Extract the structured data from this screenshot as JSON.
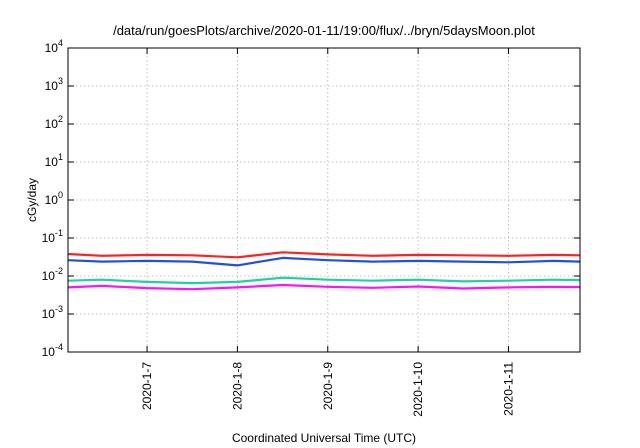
{
  "chart_data": {
    "type": "line",
    "title": "/data/run/goesPlots/archive/2020-01-11/19:00/flux/../bryn/5daysMoon.plot",
    "xlabel": "Coordinated Universal Time (UTC)",
    "ylabel": "cGy/day",
    "yscale": "log",
    "ylim": [
      0.0001,
      10000
    ],
    "xlim": [
      "2020-01-06T03:00",
      "2020-01-11T19:00"
    ],
    "y_ticks": [
      {
        "value": 0.0001,
        "base": "10",
        "exp": "-4"
      },
      {
        "value": 0.001,
        "base": "10",
        "exp": "-3"
      },
      {
        "value": 0.01,
        "base": "10",
        "exp": "-2"
      },
      {
        "value": 0.1,
        "base": "10",
        "exp": "-1"
      },
      {
        "value": 1,
        "base": "10",
        "exp": "0"
      },
      {
        "value": 10,
        "base": "10",
        "exp": "1"
      },
      {
        "value": 100,
        "base": "10",
        "exp": "2"
      },
      {
        "value": 1000,
        "base": "10",
        "exp": "3"
      },
      {
        "value": 10000,
        "base": "10",
        "exp": "4"
      }
    ],
    "x_ticks": [
      {
        "value": "2020-01-07T00:00",
        "label": "2020-1-7"
      },
      {
        "value": "2020-01-08T00:00",
        "label": "2020-1-8"
      },
      {
        "value": "2020-01-09T00:00",
        "label": "2020-1-9"
      },
      {
        "value": "2020-01-10T00:00",
        "label": "2020-1-10"
      },
      {
        "value": "2020-01-11T00:00",
        "label": "2020-1-11"
      }
    ],
    "grid": true,
    "series": [
      {
        "color": "#ff2020",
        "x": [
          "2020-01-06T03:00",
          "2020-01-06T12:00",
          "2020-01-07T00:00",
          "2020-01-07T12:00",
          "2020-01-08T00:00",
          "2020-01-08T12:00",
          "2020-01-09T00:00",
          "2020-01-09T12:00",
          "2020-01-10T00:00",
          "2020-01-10T12:00",
          "2020-01-11T00:00",
          "2020-01-11T12:00",
          "2020-01-11T19:00"
        ],
        "values": [
          0.038,
          0.034,
          0.036,
          0.035,
          0.031,
          0.042,
          0.037,
          0.034,
          0.036,
          0.035,
          0.034,
          0.036,
          0.035
        ]
      },
      {
        "color": "#2050e0",
        "x": [
          "2020-01-06T03:00",
          "2020-01-06T12:00",
          "2020-01-07T00:00",
          "2020-01-07T12:00",
          "2020-01-08T00:00",
          "2020-01-08T12:00",
          "2020-01-09T00:00",
          "2020-01-09T12:00",
          "2020-01-10T00:00",
          "2020-01-10T12:00",
          "2020-01-11T00:00",
          "2020-01-11T12:00",
          "2020-01-11T19:00"
        ],
        "values": [
          0.026,
          0.024,
          0.025,
          0.024,
          0.019,
          0.03,
          0.026,
          0.024,
          0.025,
          0.024,
          0.023,
          0.025,
          0.024
        ]
      },
      {
        "color": "#20d0a0",
        "x": [
          "2020-01-06T03:00",
          "2020-01-06T12:00",
          "2020-01-07T00:00",
          "2020-01-07T12:00",
          "2020-01-08T00:00",
          "2020-01-08T12:00",
          "2020-01-09T00:00",
          "2020-01-09T12:00",
          "2020-01-10T00:00",
          "2020-01-10T12:00",
          "2020-01-11T00:00",
          "2020-01-11T12:00",
          "2020-01-11T19:00"
        ],
        "values": [
          0.0075,
          0.008,
          0.007,
          0.0065,
          0.007,
          0.009,
          0.008,
          0.0075,
          0.008,
          0.0072,
          0.0075,
          0.008,
          0.0078
        ]
      },
      {
        "color": "#ff10ff",
        "x": [
          "2020-01-06T03:00",
          "2020-01-06T12:00",
          "2020-01-07T00:00",
          "2020-01-07T12:00",
          "2020-01-08T00:00",
          "2020-01-08T12:00",
          "2020-01-09T00:00",
          "2020-01-09T12:00",
          "2020-01-10T00:00",
          "2020-01-10T12:00",
          "2020-01-11T00:00",
          "2020-01-11T12:00",
          "2020-01-11T19:00"
        ],
        "values": [
          0.005,
          0.0055,
          0.0048,
          0.0045,
          0.005,
          0.0058,
          0.0052,
          0.0049,
          0.0053,
          0.0047,
          0.005,
          0.0052,
          0.0051
        ]
      }
    ]
  }
}
